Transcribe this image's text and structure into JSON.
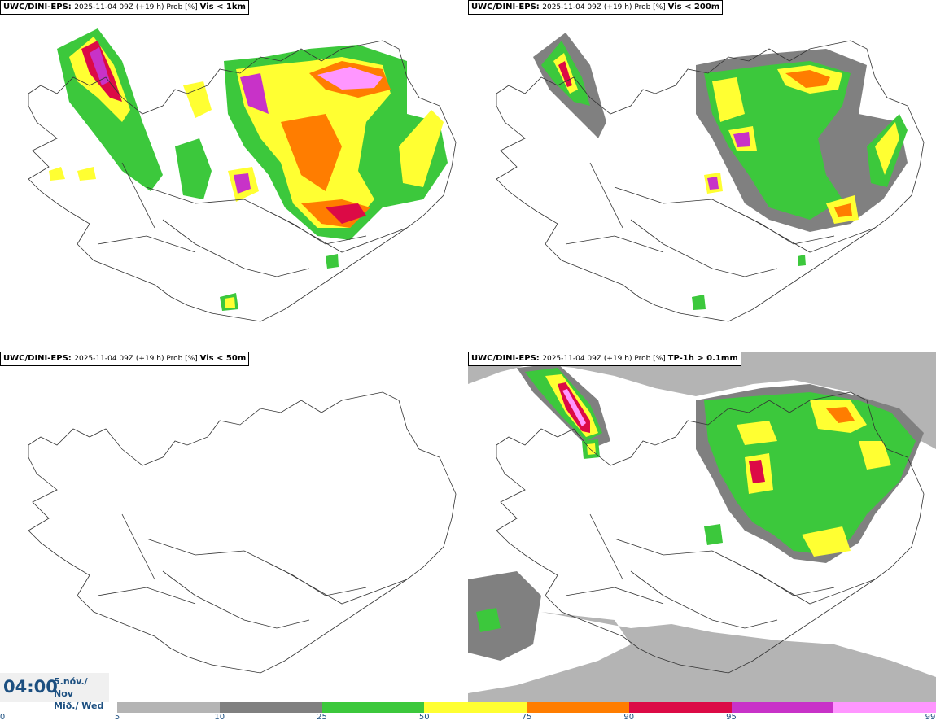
{
  "panels": [
    {
      "model": "UWC/DINI-EPS",
      "run": "2025-11-04 09Z (+19 h) Prob [%]",
      "variable": "Vis < 1km"
    },
    {
      "model": "UWC/DINI-EPS",
      "run": "2025-11-04 09Z (+19 h) Prob [%]",
      "variable": "Vis < 200m"
    },
    {
      "model": "UWC/DINI-EPS",
      "run": "2025-11-04 09Z (+19 h) Prob [%]",
      "variable": "Vis < 50m"
    },
    {
      "model": "UWC/DINI-EPS",
      "run": "2025-11-04 09Z (+19 h) Prob [%]",
      "variable": "TP-1h > 0.1mm"
    }
  ],
  "valid_time": {
    "time": "04:00",
    "date": "5.nóv./ Nov",
    "weekday": "Mið./ Wed"
  },
  "colorbar": {
    "labels": [
      "0",
      "5",
      "10",
      "25",
      "50",
      "75",
      "90",
      "95",
      "99"
    ],
    "colors": [
      "#b4b4b4",
      "#808080",
      "#3cc83c",
      "#ffff32",
      "#ff7d00",
      "#dc0a46",
      "#c832c8",
      "#ff96ff"
    ]
  }
}
